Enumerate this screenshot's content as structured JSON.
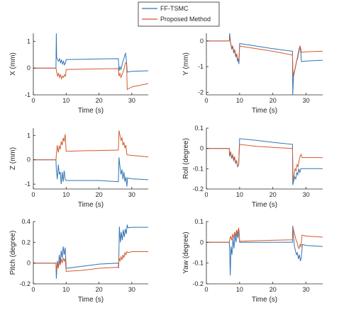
{
  "legend": {
    "entries": [
      {
        "label": "FF-TSMC",
        "color": "#2f73b5"
      },
      {
        "label": "Proposed Method",
        "color": "#d35a2e"
      }
    ]
  },
  "colors": {
    "ff_tsmc": "#2f73b5",
    "proposed": "#d35a2e",
    "axis": "#262626"
  },
  "chart_data": [
    {
      "type": "line",
      "id": "x",
      "xlabel": "Time (s)",
      "ylabel": "X (mm)",
      "xlim": [
        0,
        35
      ],
      "ylim": [
        -1,
        1.3
      ],
      "xticks": [
        0,
        10,
        20,
        30
      ],
      "yticks": [
        -1,
        0,
        1
      ],
      "series": [
        {
          "name": "FF-TSMC",
          "x": [
            0,
            6.9,
            7.0,
            7.1,
            7.4,
            7.7,
            8.0,
            8.3,
            8.6,
            8.9,
            9.2,
            9.5,
            9.8,
            10.0,
            15,
            20,
            25.9,
            26.1,
            26.4,
            26.7,
            27.0,
            27.3,
            27.6,
            27.9,
            28.1,
            28.4,
            28.6,
            30,
            35
          ],
          "y": [
            0,
            0,
            1.3,
            0.4,
            0.3,
            0.25,
            0.35,
            0.2,
            0.3,
            0.15,
            0.25,
            0.12,
            0.2,
            0.32,
            0.33,
            0.34,
            0.35,
            -0.1,
            0.05,
            -0.05,
            0.1,
            0.25,
            0.35,
            0.5,
            0.55,
            0.2,
            -0.15,
            -0.12,
            -0.1
          ]
        },
        {
          "name": "Proposed Method",
          "x": [
            0,
            6.9,
            7.1,
            7.4,
            7.7,
            8.0,
            8.3,
            8.6,
            8.9,
            9.2,
            9.5,
            9.8,
            10.0,
            15,
            20,
            25.9,
            26.1,
            26.4,
            26.7,
            27.0,
            27.3,
            27.6,
            27.9,
            28.1,
            28.4,
            28.6,
            30,
            35
          ],
          "y": [
            0,
            0,
            -0.15,
            -0.3,
            -0.2,
            -0.35,
            -0.25,
            -0.4,
            -0.3,
            -0.35,
            -0.25,
            -0.3,
            -0.05,
            -0.04,
            -0.03,
            -0.02,
            -0.3,
            -0.2,
            -0.35,
            -0.25,
            -0.15,
            -0.05,
            0.1,
            0.2,
            0.15,
            -0.8,
            -0.7,
            -0.58
          ]
        }
      ]
    },
    {
      "type": "line",
      "id": "y",
      "xlabel": "Time (s)",
      "ylabel": "Y (mm)",
      "xlim": [
        0,
        35
      ],
      "ylim": [
        -2.1,
        0.3
      ],
      "xticks": [
        0,
        10,
        20,
        30
      ],
      "yticks": [
        -2,
        -1,
        0
      ],
      "series": [
        {
          "name": "FF-TSMC",
          "x": [
            0,
            6.9,
            7.0,
            7.3,
            7.6,
            7.9,
            8.2,
            8.5,
            8.8,
            9.1,
            9.4,
            9.6,
            9.8,
            10.0,
            15,
            20,
            25.9,
            26.0,
            26.2,
            26.5,
            26.8,
            27.1,
            27.4,
            27.7,
            28.0,
            28.2,
            28.4,
            28.6,
            30,
            35
          ],
          "y": [
            0,
            0,
            0.3,
            -0.1,
            -0.3,
            -0.2,
            -0.45,
            -0.35,
            -0.6,
            -0.5,
            -0.8,
            -0.7,
            -0.9,
            -0.1,
            -0.2,
            -0.3,
            -0.4,
            -2.1,
            -1.4,
            -1.2,
            -1.0,
            -0.8,
            -0.7,
            -0.5,
            -0.3,
            -0.2,
            -0.45,
            -0.8,
            -0.78,
            -0.75
          ]
        },
        {
          "name": "Proposed Method",
          "x": [
            0,
            6.9,
            7.1,
            7.4,
            7.7,
            8.0,
            8.3,
            8.6,
            8.9,
            9.2,
            9.5,
            9.8,
            10.0,
            15,
            20,
            25.9,
            26.1,
            26.4,
            26.7,
            27.0,
            27.3,
            27.6,
            27.9,
            28.2,
            28.4,
            28.6,
            30,
            35
          ],
          "y": [
            0,
            0,
            0.15,
            -0.15,
            -0.3,
            -0.25,
            -0.45,
            -0.4,
            -0.6,
            -0.55,
            -0.75,
            -0.7,
            -0.2,
            -0.3,
            -0.4,
            -0.55,
            -1.4,
            -1.2,
            -1.1,
            -0.9,
            -0.7,
            -0.5,
            -0.3,
            -0.2,
            -0.3,
            -0.45,
            -0.42,
            -0.4
          ]
        }
      ]
    },
    {
      "type": "line",
      "id": "z",
      "xlabel": "Time (s)",
      "ylabel": "Z (mm)",
      "xlim": [
        0,
        35
      ],
      "ylim": [
        -1.2,
        1.3
      ],
      "xticks": [
        0,
        10,
        20,
        30
      ],
      "yticks": [
        -1,
        0,
        1
      ],
      "series": [
        {
          "name": "FF-TSMC",
          "x": [
            0,
            6.9,
            7.0,
            7.3,
            7.6,
            7.9,
            8.2,
            8.5,
            8.8,
            9.1,
            9.4,
            9.7,
            10.0,
            15,
            20,
            25.9,
            26.1,
            26.4,
            26.7,
            27.0,
            27.3,
            27.6,
            27.9,
            28.2,
            28.5,
            28.7,
            30,
            35
          ],
          "y": [
            0,
            0,
            -0.4,
            -0.8,
            -0.2,
            -0.6,
            -0.5,
            -1.0,
            -0.5,
            -0.9,
            -0.45,
            -0.8,
            -0.85,
            -0.85,
            -0.85,
            -0.9,
            0.1,
            -0.3,
            -0.6,
            -0.4,
            -0.8,
            -0.5,
            -0.9,
            -0.7,
            -1.1,
            -0.75,
            -0.78,
            -0.82
          ]
        },
        {
          "name": "Proposed Method",
          "x": [
            0,
            6.9,
            7.0,
            7.3,
            7.6,
            7.9,
            8.2,
            8.5,
            8.8,
            9.1,
            9.4,
            9.7,
            10.0,
            15,
            20,
            25.9,
            26.1,
            26.4,
            26.7,
            27.0,
            27.3,
            27.6,
            27.9,
            28.2,
            28.5,
            28.7,
            30,
            35
          ],
          "y": [
            0,
            0,
            0.2,
            0.6,
            0.3,
            0.55,
            0.45,
            0.75,
            0.6,
            0.9,
            0.75,
            1.05,
            0.35,
            0.37,
            0.38,
            0.4,
            1.2,
            1.0,
            0.8,
            0.9,
            0.6,
            0.7,
            0.5,
            0.6,
            0.2,
            0.2,
            0.18,
            0.12
          ]
        }
      ]
    },
    {
      "type": "line",
      "id": "roll",
      "xlabel": "Time (s)",
      "ylabel": "Roll (degree)",
      "xlim": [
        0,
        35
      ],
      "ylim": [
        -0.2,
        0.1
      ],
      "xticks": [
        0,
        10,
        20,
        30
      ],
      "yticks": [
        -0.2,
        -0.1,
        0,
        0.1
      ],
      "series": [
        {
          "name": "FF-TSMC",
          "x": [
            0,
            6.9,
            7.0,
            7.3,
            7.6,
            7.9,
            8.2,
            8.5,
            8.8,
            9.1,
            9.4,
            9.7,
            10.0,
            15,
            20,
            25.9,
            26.0,
            26.3,
            26.6,
            26.9,
            27.2,
            27.5,
            27.8,
            28.1,
            28.4,
            28.7,
            30,
            35
          ],
          "y": [
            0,
            0,
            -0.04,
            -0.02,
            -0.05,
            -0.035,
            -0.06,
            -0.045,
            -0.075,
            -0.06,
            -0.09,
            -0.08,
            0.048,
            0.04,
            0.03,
            0.02,
            -0.18,
            -0.16,
            -0.14,
            -0.15,
            -0.12,
            -0.13,
            -0.1,
            -0.12,
            -0.1,
            -0.1,
            -0.1,
            -0.1
          ]
        },
        {
          "name": "Proposed Method",
          "x": [
            0,
            6.9,
            7.0,
            7.3,
            7.6,
            7.9,
            8.2,
            8.5,
            8.8,
            9.1,
            9.4,
            9.7,
            10.0,
            15,
            20,
            25.9,
            26.1,
            26.4,
            26.7,
            27.0,
            27.3,
            27.6,
            27.9,
            28.2,
            28.5,
            28.8,
            30,
            35
          ],
          "y": [
            0,
            0,
            -0.03,
            -0.015,
            -0.045,
            -0.03,
            -0.055,
            -0.04,
            -0.07,
            -0.06,
            -0.085,
            -0.08,
            0.02,
            0.01,
            0.005,
            0.0,
            -0.16,
            -0.13,
            -0.1,
            -0.11,
            -0.08,
            -0.09,
            -0.06,
            -0.04,
            -0.03,
            -0.045,
            -0.045,
            -0.045
          ]
        }
      ]
    },
    {
      "type": "line",
      "id": "pitch",
      "xlabel": "Time (s)",
      "ylabel": "Pitch (degree)",
      "xlim": [
        0,
        35
      ],
      "ylim": [
        -0.2,
        0.4
      ],
      "xticks": [
        0,
        10,
        20,
        30
      ],
      "yticks": [
        -0.2,
        0,
        0.2,
        0.4
      ],
      "series": [
        {
          "name": "FF-TSMC",
          "x": [
            0,
            6.9,
            7.0,
            7.3,
            7.6,
            7.9,
            8.2,
            8.5,
            8.8,
            9.1,
            9.4,
            9.7,
            10.0,
            15,
            20,
            25.9,
            26.0,
            26.2,
            26.5,
            26.8,
            27.1,
            27.4,
            27.7,
            28.0,
            28.3,
            28.6,
            28.8,
            30,
            35
          ],
          "y": [
            0,
            0,
            -0.15,
            0.02,
            -0.05,
            0.08,
            0.0,
            0.12,
            0.05,
            0.16,
            0.08,
            0.15,
            -0.05,
            -0.03,
            -0.01,
            0.0,
            -0.05,
            0.35,
            0.2,
            0.3,
            0.22,
            0.32,
            0.25,
            0.33,
            0.28,
            0.37,
            0.34,
            0.345,
            0.345
          ]
        },
        {
          "name": "Proposed Method",
          "x": [
            0,
            6.9,
            7.0,
            7.3,
            7.6,
            7.9,
            8.2,
            8.5,
            8.8,
            9.1,
            9.4,
            9.7,
            10.0,
            15,
            20,
            25.9,
            26.1,
            26.4,
            26.7,
            27.0,
            27.3,
            27.6,
            27.9,
            28.2,
            28.5,
            28.8,
            30,
            35
          ],
          "y": [
            0,
            0,
            -0.08,
            0.0,
            -0.05,
            0.02,
            -0.02,
            0.04,
            0.0,
            0.05,
            0.02,
            0.04,
            -0.08,
            -0.07,
            -0.05,
            -0.04,
            0.05,
            0.02,
            0.06,
            0.03,
            0.08,
            0.05,
            0.1,
            0.08,
            0.11,
            0.1,
            0.11,
            0.11
          ]
        }
      ]
    },
    {
      "type": "line",
      "id": "yaw",
      "xlabel": "Time (s)",
      "ylabel": "Yaw (degree)",
      "xlim": [
        0,
        35
      ],
      "ylim": [
        -0.2,
        0.1
      ],
      "xticks": [
        0,
        10,
        20,
        30
      ],
      "yticks": [
        -0.2,
        -0.1,
        0,
        0.1
      ],
      "series": [
        {
          "name": "FF-TSMC",
          "x": [
            0,
            6.9,
            7.0,
            7.2,
            7.4,
            7.7,
            8.0,
            8.3,
            8.6,
            8.9,
            9.2,
            9.5,
            9.8,
            10.0,
            15,
            20,
            25.9,
            26.0,
            26.2,
            26.5,
            26.8,
            27.1,
            27.4,
            27.7,
            28.0,
            28.3,
            28.6,
            28.9,
            30,
            35
          ],
          "y": [
            0,
            0,
            -0.04,
            -0.16,
            -0.02,
            -0.06,
            0.02,
            -0.03,
            0.04,
            0.0,
            0.05,
            0.02,
            0.06,
            0.0,
            0.0,
            0.0,
            0.0,
            0.08,
            0.03,
            -0.02,
            -0.04,
            -0.06,
            -0.05,
            -0.08,
            -0.06,
            -0.09,
            -0.07,
            -0.01,
            -0.015,
            -0.02
          ]
        },
        {
          "name": "Proposed Method",
          "x": [
            0,
            6.9,
            7.0,
            7.3,
            7.6,
            7.9,
            8.2,
            8.5,
            8.8,
            9.1,
            9.4,
            9.7,
            10.0,
            15,
            20,
            25.9,
            26.1,
            26.4,
            26.7,
            27.0,
            27.3,
            27.6,
            27.9,
            28.2,
            28.5,
            28.8,
            30,
            35
          ],
          "y": [
            0,
            0,
            0.01,
            0.03,
            0.01,
            0.04,
            0.02,
            0.05,
            0.03,
            0.06,
            0.04,
            0.07,
            0.005,
            0.008,
            0.01,
            0.012,
            0.07,
            0.05,
            0.03,
            0.01,
            0.0,
            -0.02,
            -0.03,
            -0.01,
            -0.02,
            0.035,
            0.03,
            0.025
          ]
        }
      ]
    }
  ]
}
